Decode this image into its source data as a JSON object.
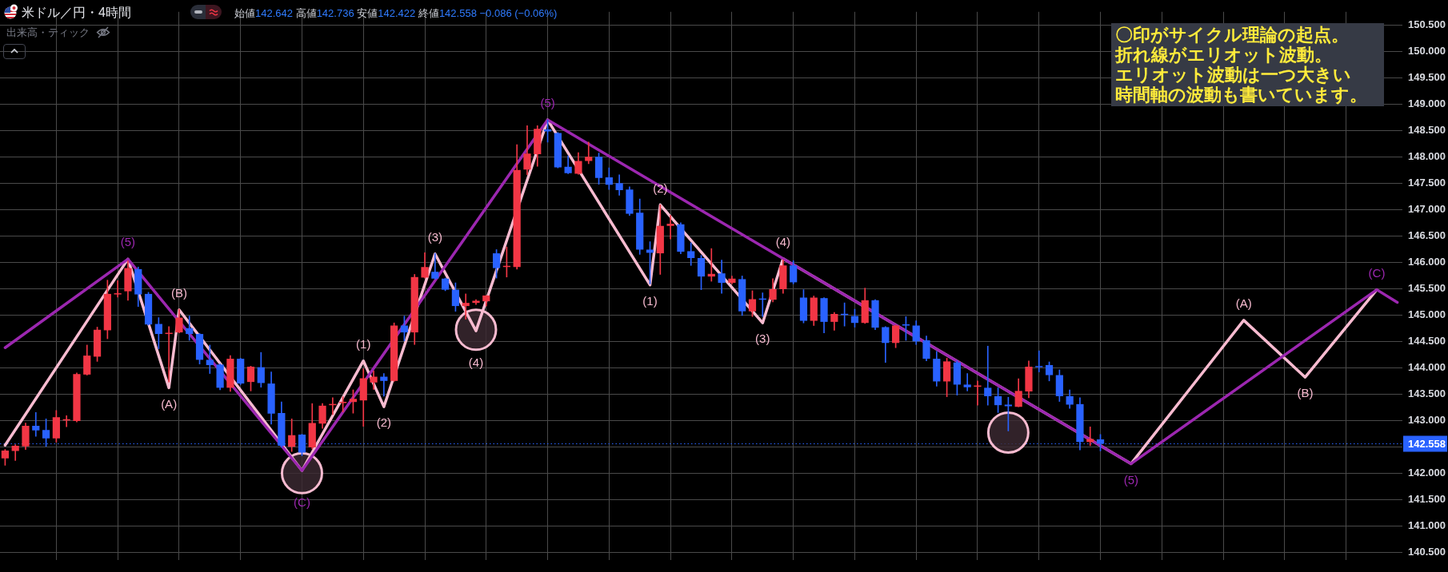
{
  "chart_data": {
    "type": "candlestick",
    "title": "米ドル／円・4時間",
    "subtitle": "始値142.642 高値142.736 安値142.422 終値142.558 −0.086 (−0.06%)",
    "annotations": [
      "出来高・ティック",
      "〇印がサイクル理論の起点。",
      "折れ線がエリオット波動。",
      "エリオット波動は一つ大きい",
      "時間軸の波動も書いています。",
      {
        "text": "(5)",
        "y": 146.06
      },
      {
        "text": "(A)",
        "y": 143.62
      },
      {
        "text": "(B)",
        "y": 145.1
      },
      {
        "text": "(C)",
        "y": 142.05
      },
      {
        "text": "(1)",
        "y": 144.13
      },
      {
        "text": "(2)",
        "y": 143.26
      },
      {
        "text": "(3)",
        "y": 146.16
      },
      {
        "text": "(4)",
        "y": 144.7
      },
      {
        "text": "(5)",
        "y": 148.7
      },
      {
        "text": "(1)",
        "y": 145.57
      },
      {
        "text": "(2)",
        "y": 147.09
      },
      {
        "text": "(3)",
        "y": 144.85
      },
      {
        "text": "(4)",
        "y": 146.07
      },
      {
        "text": "(5)",
        "y": 142.18
      },
      {
        "text": "(A)",
        "y": 144.9
      },
      {
        "text": "(B)",
        "y": 143.82
      },
      {
        "text": "(C)",
        "y": 145.48
      }
    ],
    "categories": [
      null,
      null,
      null,
      null,
      null,
      null,
      null,
      null,
      null,
      null,
      null,
      null,
      null,
      null,
      null,
      null,
      null,
      null,
      null,
      null,
      null,
      null,
      null,
      null,
      null,
      null,
      null,
      null,
      null,
      null,
      null,
      null,
      null,
      null,
      null,
      null,
      null,
      null,
      null,
      null,
      null,
      null,
      null,
      null,
      null,
      null,
      null,
      null,
      null,
      null,
      null,
      null,
      null,
      null,
      null,
      null,
      null,
      null,
      null,
      null,
      null,
      null,
      null,
      null,
      null,
      null,
      null,
      null,
      null,
      null,
      null,
      null,
      null,
      null,
      null,
      null,
      null,
      null,
      null,
      null,
      null,
      null,
      null,
      null,
      null,
      null,
      null,
      null,
      null,
      null,
      null,
      null,
      null,
      null,
      null,
      null,
      null,
      null,
      null,
      null,
      null,
      null,
      null,
      null,
      null,
      null,
      null,
      null,
      null,
      null,
      null,
      null,
      null,
      null,
      null,
      null,
      null,
      null,
      null,
      null,
      null,
      null,
      null,
      null,
      null,
      null,
      null,
      null,
      null,
      null,
      null,
      null,
      null,
      null,
      null,
      null,
      null
    ],
    "ohlc": [
      [
        142.28,
        142.45,
        142.15,
        142.43
      ],
      [
        142.42,
        142.54,
        142.24,
        142.52
      ],
      [
        142.51,
        142.95,
        142.45,
        142.9
      ],
      [
        142.9,
        143.15,
        142.7,
        142.81
      ],
      [
        142.82,
        143.03,
        142.51,
        142.66
      ],
      [
        142.66,
        143.19,
        142.59,
        143.06
      ],
      [
        143.0,
        143.09,
        142.88,
        143.01
      ],
      [
        142.99,
        143.9,
        142.97,
        143.88
      ],
      [
        143.87,
        144.43,
        143.86,
        144.23
      ],
      [
        144.21,
        144.77,
        144.12,
        144.72
      ],
      [
        144.71,
        145.66,
        144.55,
        145.4
      ],
      [
        145.39,
        145.65,
        145.34,
        145.4
      ],
      [
        145.45,
        146.03,
        145.28,
        145.89
      ],
      [
        145.87,
        145.91,
        145.16,
        145.39
      ],
      [
        145.4,
        145.43,
        144.81,
        144.82
      ],
      [
        144.83,
        144.95,
        144.36,
        144.64
      ],
      [
        144.64,
        144.78,
        143.73,
        144.66
      ],
      [
        144.67,
        145.11,
        144.66,
        144.95
      ],
      [
        144.75,
        144.98,
        144.52,
        144.64
      ],
      [
        144.64,
        144.65,
        144.07,
        144.15
      ],
      [
        144.15,
        144.43,
        143.89,
        144.05
      ],
      [
        144.06,
        144.07,
        143.58,
        143.62
      ],
      [
        143.62,
        144.23,
        143.55,
        144.17
      ],
      [
        144.17,
        144.18,
        143.68,
        143.7
      ],
      [
        143.73,
        144.03,
        143.56,
        144.02
      ],
      [
        144.01,
        144.29,
        143.63,
        143.71
      ],
      [
        143.7,
        143.92,
        142.93,
        143.13
      ],
      [
        143.14,
        143.35,
        142.49,
        142.52
      ],
      [
        142.5,
        143.03,
        142.41,
        142.72
      ],
      [
        142.73,
        142.74,
        142.33,
        142.39
      ],
      [
        142.49,
        143.32,
        142.46,
        142.95
      ],
      [
        142.94,
        143.32,
        142.85,
        143.28
      ],
      [
        143.29,
        143.43,
        143.11,
        143.3
      ],
      [
        143.33,
        143.45,
        143.16,
        143.35
      ],
      [
        143.35,
        143.58,
        143.14,
        143.41
      ],
      [
        143.38,
        143.98,
        142.89,
        143.8
      ],
      [
        143.72,
        143.94,
        143.59,
        143.83
      ],
      [
        143.83,
        143.89,
        143.46,
        143.75
      ],
      [
        143.75,
        144.85,
        143.74,
        144.8
      ],
      [
        144.8,
        144.98,
        144.51,
        144.67
      ],
      [
        144.67,
        145.77,
        144.44,
        145.72
      ],
      [
        145.71,
        146.18,
        145.7,
        145.91
      ],
      [
        145.82,
        146.17,
        145.68,
        145.69
      ],
      [
        145.69,
        145.7,
        145.46,
        145.48
      ],
      [
        145.48,
        145.61,
        145.07,
        145.17
      ],
      [
        145.17,
        145.4,
        144.92,
        145.23
      ],
      [
        145.23,
        145.29,
        145.2,
        145.27
      ],
      [
        145.26,
        145.37,
        145.17,
        145.37
      ],
      [
        146.17,
        146.24,
        145.7,
        145.89
      ],
      [
        145.91,
        146.29,
        145.72,
        145.92
      ],
      [
        145.91,
        148.23,
        145.87,
        147.75
      ],
      [
        147.76,
        148.59,
        147.66,
        148.06
      ],
      [
        148.05,
        148.59,
        147.82,
        148.53
      ],
      [
        148.52,
        148.7,
        148.28,
        148.48
      ],
      [
        148.45,
        148.46,
        147.79,
        147.8
      ],
      [
        147.81,
        148.02,
        147.68,
        147.69
      ],
      [
        147.68,
        148.08,
        147.67,
        147.92
      ],
      [
        147.92,
        148.28,
        147.87,
        148.0
      ],
      [
        148.0,
        148.07,
        147.48,
        147.6
      ],
      [
        147.61,
        147.79,
        147.38,
        147.47
      ],
      [
        147.5,
        147.66,
        147.27,
        147.37
      ],
      [
        147.38,
        147.43,
        146.89,
        146.92
      ],
      [
        146.94,
        147.2,
        146.15,
        146.24
      ],
      [
        146.24,
        146.39,
        145.59,
        146.18
      ],
      [
        146.17,
        147.09,
        145.77,
        146.69
      ],
      [
        146.69,
        146.89,
        146.44,
        146.73
      ],
      [
        146.72,
        146.75,
        146.16,
        146.2
      ],
      [
        146.21,
        146.37,
        145.94,
        146.08
      ],
      [
        146.08,
        146.13,
        145.48,
        145.73
      ],
      [
        145.73,
        146.26,
        145.64,
        145.78
      ],
      [
        145.79,
        146.04,
        145.41,
        145.61
      ],
      [
        145.61,
        145.74,
        145.59,
        145.69
      ],
      [
        145.68,
        145.74,
        144.99,
        145.07
      ],
      [
        145.07,
        145.46,
        144.97,
        145.3
      ],
      [
        145.31,
        145.42,
        144.97,
        145.29
      ],
      [
        145.29,
        145.69,
        145.25,
        145.49
      ],
      [
        145.49,
        146.05,
        145.41,
        145.94
      ],
      [
        145.94,
        146.03,
        145.59,
        145.62
      ],
      [
        145.33,
        145.48,
        144.85,
        144.89
      ],
      [
        144.89,
        145.36,
        144.8,
        145.33
      ],
      [
        145.32,
        145.33,
        144.66,
        144.87
      ],
      [
        144.87,
        145.05,
        144.71,
        145.02
      ],
      [
        145.02,
        145.23,
        144.79,
        145.0
      ],
      [
        144.98,
        145.11,
        144.77,
        144.85
      ],
      [
        144.85,
        145.51,
        144.84,
        145.28
      ],
      [
        145.28,
        145.29,
        144.72,
        144.76
      ],
      [
        144.77,
        144.78,
        144.1,
        144.47
      ],
      [
        144.47,
        144.81,
        144.38,
        144.8
      ],
      [
        144.82,
        144.97,
        144.52,
        144.8
      ],
      [
        144.8,
        144.89,
        144.44,
        144.5
      ],
      [
        144.52,
        144.6,
        144.13,
        144.17
      ],
      [
        144.17,
        144.31,
        143.65,
        143.74
      ],
      [
        143.74,
        144.18,
        143.45,
        144.12
      ],
      [
        144.1,
        144.13,
        143.48,
        143.68
      ],
      [
        143.68,
        143.89,
        143.56,
        143.63
      ],
      [
        143.64,
        143.75,
        143.29,
        143.65
      ],
      [
        143.62,
        144.41,
        143.29,
        143.46
      ],
      [
        143.46,
        143.62,
        143.15,
        143.29
      ],
      [
        143.3,
        143.44,
        142.8,
        143.27
      ],
      [
        143.26,
        143.79,
        143.26,
        143.56
      ],
      [
        143.55,
        144.13,
        143.43,
        144.02
      ],
      [
        144.03,
        144.32,
        143.92,
        144.01
      ],
      [
        144.05,
        144.11,
        143.75,
        143.86
      ],
      [
        143.86,
        143.96,
        143.36,
        143.46
      ],
      [
        143.46,
        143.58,
        143.23,
        143.3
      ],
      [
        143.31,
        143.43,
        142.44,
        142.59
      ],
      [
        142.59,
        142.88,
        142.52,
        142.65
      ],
      [
        142.642,
        142.736,
        142.422,
        142.558
      ],
      null,
      null,
      null,
      null,
      null,
      null,
      null,
      null,
      null,
      null,
      null,
      null,
      null,
      null,
      null,
      null,
      null,
      null,
      null,
      null,
      null,
      null,
      null,
      null,
      null,
      null,
      null,
      null,
      null
    ],
    "colors": [
      "#f23645",
      "#f23645",
      "#f23645",
      "#2962ff",
      "#2962ff",
      "#f23645",
      "#f23645",
      "#f23645",
      "#f23645",
      "#f23645",
      "#f23645",
      "#f23645",
      "#f23645",
      "#2962ff",
      "#2962ff",
      "#2962ff",
      "#f23645",
      "#f23645",
      "#2962ff",
      "#2962ff",
      "#2962ff",
      "#2962ff",
      "#f23645",
      "#2962ff",
      "#f23645",
      "#2962ff",
      "#2962ff",
      "#2962ff",
      "#f23645",
      "#2962ff",
      "#f23645",
      "#f23645",
      "#f23645",
      "#f23645",
      "#f23645",
      "#f23645",
      "#f23645",
      "#2962ff",
      "#f23645",
      "#2962ff",
      "#f23645",
      "#f23645",
      "#2962ff",
      "#2962ff",
      "#2962ff",
      "#f23645",
      "#f23645",
      "#f23645",
      "#2962ff",
      "#f23645",
      "#f23645",
      "#f23645",
      "#f23645",
      "#2962ff",
      "#2962ff",
      "#2962ff",
      "#f23645",
      "#f23645",
      "#2962ff",
      "#2962ff",
      "#2962ff",
      "#2962ff",
      "#2962ff",
      "#2962ff",
      "#f23645",
      "#f23645",
      "#2962ff",
      "#2962ff",
      "#2962ff",
      "#f23645",
      "#2962ff",
      "#f23645",
      "#2962ff",
      "#f23645",
      "#2962ff",
      "#f23645",
      "#f23645",
      "#2962ff",
      "#2962ff",
      "#f23645",
      "#2962ff",
      "#f23645",
      "#2962ff",
      "#2962ff",
      "#f23645",
      "#2962ff",
      "#2962ff",
      "#f23645",
      "#2962ff",
      "#2962ff",
      "#2962ff",
      "#2962ff",
      "#f23645",
      "#2962ff",
      "#2962ff",
      "#f23645",
      "#2962ff",
      "#2962ff",
      "#2962ff",
      "#f23645",
      "#f23645",
      "#2962ff",
      "#2962ff",
      "#2962ff",
      "#2962ff",
      "#2962ff",
      "#f23645",
      "#2962ff",
      null,
      null,
      null,
      null,
      null,
      null,
      null,
      null,
      null,
      null,
      null,
      null,
      null,
      null,
      null,
      null,
      null,
      null,
      null,
      null,
      null,
      null,
      null,
      null,
      null,
      null,
      null,
      null,
      null
    ],
    "series": [
      {
        "type": "scatter",
        "color": "#f8bbd0",
        "marker": "circle",
        "values": [
          null,
          null,
          null,
          null,
          null,
          null,
          null,
          null,
          null,
          null,
          null,
          null,
          null,
          null,
          null,
          null,
          null,
          null,
          null,
          null,
          null,
          null,
          null,
          null,
          null,
          null,
          null,
          null,
          null,
          142.0,
          null,
          null,
          null,
          null,
          null,
          null,
          null,
          null,
          null,
          null,
          null,
          null,
          null,
          null,
          null,
          null,
          144.72,
          null,
          null,
          null,
          null,
          null,
          null,
          null,
          null,
          null,
          null,
          null,
          null,
          null,
          null,
          null,
          null,
          null,
          null,
          null,
          null,
          null,
          null,
          null,
          null,
          null,
          null,
          null,
          null,
          null,
          null,
          null,
          null,
          null,
          null,
          null,
          null,
          null,
          null,
          null,
          null,
          null,
          null,
          null,
          null,
          null,
          null,
          null,
          null,
          null,
          null,
          null,
          142.77,
          null,
          null,
          null,
          null,
          null,
          null,
          null,
          null,
          null,
          null,
          null,
          null,
          null,
          null,
          null,
          null,
          null,
          null,
          null,
          null,
          null,
          null,
          null,
          null,
          null,
          null,
          null,
          null,
          null,
          null,
          null,
          null,
          null,
          null,
          null,
          null,
          null,
          null
        ]
      },
      {
        "type": "line",
        "color": "#f8bbd0",
        "values": [
          142.53,
          null,
          null,
          null,
          null,
          null,
          null,
          null,
          null,
          null,
          null,
          null,
          146.06,
          null,
          null,
          null,
          143.62,
          145.1,
          null,
          null,
          null,
          null,
          null,
          null,
          null,
          null,
          null,
          null,
          null,
          142.05,
          null,
          null,
          null,
          null,
          null,
          144.13,
          null,
          143.26,
          null,
          null,
          null,
          null,
          146.16,
          null,
          null,
          null,
          144.7,
          null,
          null,
          null,
          null,
          null,
          null,
          148.7,
          null,
          null,
          null,
          null,
          null,
          null,
          null,
          null,
          null,
          145.57,
          147.09,
          null,
          null,
          null,
          null,
          null,
          null,
          null,
          null,
          null,
          144.85,
          null,
          146.07,
          null,
          null,
          null,
          null,
          null,
          null,
          null,
          null,
          null,
          null,
          null,
          null,
          null,
          null,
          null,
          null,
          null,
          null,
          null,
          null,
          null,
          null,
          null,
          null,
          null,
          null,
          null,
          null,
          null,
          null,
          null,
          null,
          null,
          142.18,
          null,
          null,
          null,
          null,
          null,
          null,
          null,
          null,
          null,
          null,
          144.9,
          null,
          null,
          null,
          null,
          null,
          143.82,
          null,
          null,
          null,
          null,
          null,
          null,
          145.48,
          null,
          null
        ]
      },
      {
        "type": "line",
        "color": "#9c27b0",
        "values": [
          144.38,
          null,
          null,
          null,
          null,
          null,
          null,
          null,
          null,
          null,
          null,
          null,
          146.06,
          null,
          null,
          null,
          null,
          null,
          null,
          null,
          null,
          null,
          null,
          null,
          null,
          null,
          null,
          null,
          null,
          142.05,
          null,
          null,
          null,
          null,
          null,
          null,
          null,
          null,
          null,
          null,
          null,
          null,
          null,
          null,
          null,
          null,
          null,
          null,
          null,
          null,
          null,
          null,
          null,
          148.7,
          null,
          null,
          null,
          null,
          null,
          null,
          null,
          null,
          null,
          null,
          null,
          null,
          null,
          null,
          null,
          null,
          null,
          null,
          null,
          null,
          null,
          null,
          null,
          null,
          null,
          null,
          null,
          null,
          null,
          null,
          null,
          null,
          null,
          null,
          null,
          null,
          null,
          null,
          null,
          null,
          null,
          null,
          null,
          null,
          null,
          null,
          null,
          null,
          null,
          null,
          null,
          null,
          null,
          null,
          null,
          null,
          142.18,
          null,
          null,
          null,
          null,
          null,
          null,
          null,
          null,
          null,
          null,
          null,
          null,
          null,
          null,
          null,
          null,
          null,
          null,
          null,
          null,
          null,
          null,
          null,
          145.48,
          null,
          145.24
        ]
      }
    ],
    "ylim": [
      140.35,
      150.75
    ],
    "yticks": [
      {
        "value": 140.5,
        "label": "140.500"
      },
      {
        "value": 141,
        "label": "141.000"
      },
      {
        "value": 141.5,
        "label": "141.500"
      },
      {
        "value": 142,
        "label": "142.000"
      },
      {
        "value": 142.5,
        "label": null
      },
      {
        "value": 143,
        "label": "143.000"
      },
      {
        "value": 143.5,
        "label": "143.500"
      },
      {
        "value": 144,
        "label": "144.000"
      },
      {
        "value": 144.5,
        "label": "144.500"
      },
      {
        "value": 145,
        "label": "145.000"
      },
      {
        "value": 145.5,
        "label": "145.500"
      },
      {
        "value": 146,
        "label": "146.000"
      },
      {
        "value": 146.5,
        "label": "146.500"
      },
      {
        "value": 147,
        "label": "147.000"
      },
      {
        "value": 147.5,
        "label": "147.500"
      },
      {
        "value": 148,
        "label": "148.000"
      },
      {
        "value": 148.5,
        "label": "148.500"
      },
      {
        "value": 149,
        "label": "149.000"
      },
      {
        "value": 149.5,
        "label": "149.500"
      },
      {
        "value": 150,
        "label": "150.000"
      },
      {
        "value": 150.5,
        "label": "150.500"
      }
    ],
    "grid": true,
    "ref_lines": [
      {
        "axis": "y",
        "value": 142.558,
        "label": "142.558",
        "color": "#2962ff",
        "line_style": "dotted"
      }
    ]
  }
}
